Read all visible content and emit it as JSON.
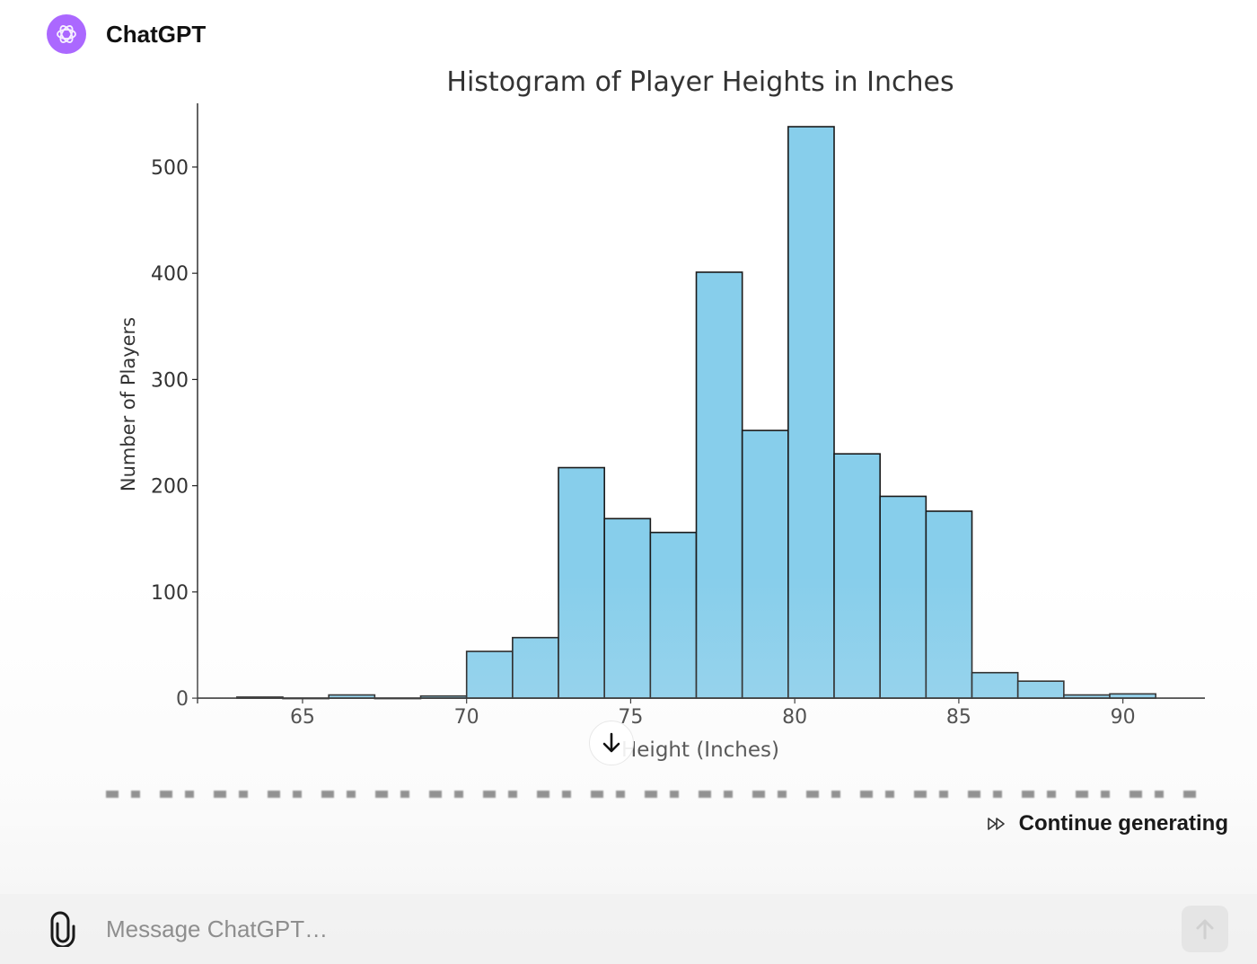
{
  "header": {
    "sender": "ChatGPT",
    "avatar_icon": "openai-logo-icon",
    "avatar_color": "#ab68ff"
  },
  "chart_data": {
    "type": "bar",
    "title": "Histogram of Player Heights in Inches",
    "xlabel": "Height (Inches)",
    "ylabel": "Number of Players",
    "xlim": [
      61.8,
      92.5
    ],
    "ylim": [
      -5,
      560
    ],
    "xticks": [
      65,
      70,
      75,
      80,
      85,
      90
    ],
    "yticks": [
      0,
      100,
      200,
      300,
      400,
      500
    ],
    "bin_edges": [
      63.0,
      64.4,
      65.8,
      67.2,
      68.6,
      70.0,
      71.4,
      72.8,
      74.2,
      75.6,
      77.0,
      78.4,
      79.8,
      81.2,
      82.6,
      84.0,
      85.4,
      86.8,
      88.2,
      89.6,
      91.0
    ],
    "values": [
      1,
      0,
      3,
      0,
      2,
      44,
      57,
      217,
      169,
      156,
      401,
      252,
      538,
      230,
      190,
      176,
      24,
      16,
      3,
      4
    ],
    "bar_color": "#87ceeb",
    "edge_color": "#1a1a1a",
    "grid": false
  },
  "scroll_down_icon": "arrow-down-icon",
  "continue": {
    "label": "Continue generating",
    "icon": "fast-forward-icon"
  },
  "composer": {
    "placeholder": "Message ChatGPT…",
    "attach_icon": "paperclip-icon",
    "send_icon": "send-icon"
  }
}
